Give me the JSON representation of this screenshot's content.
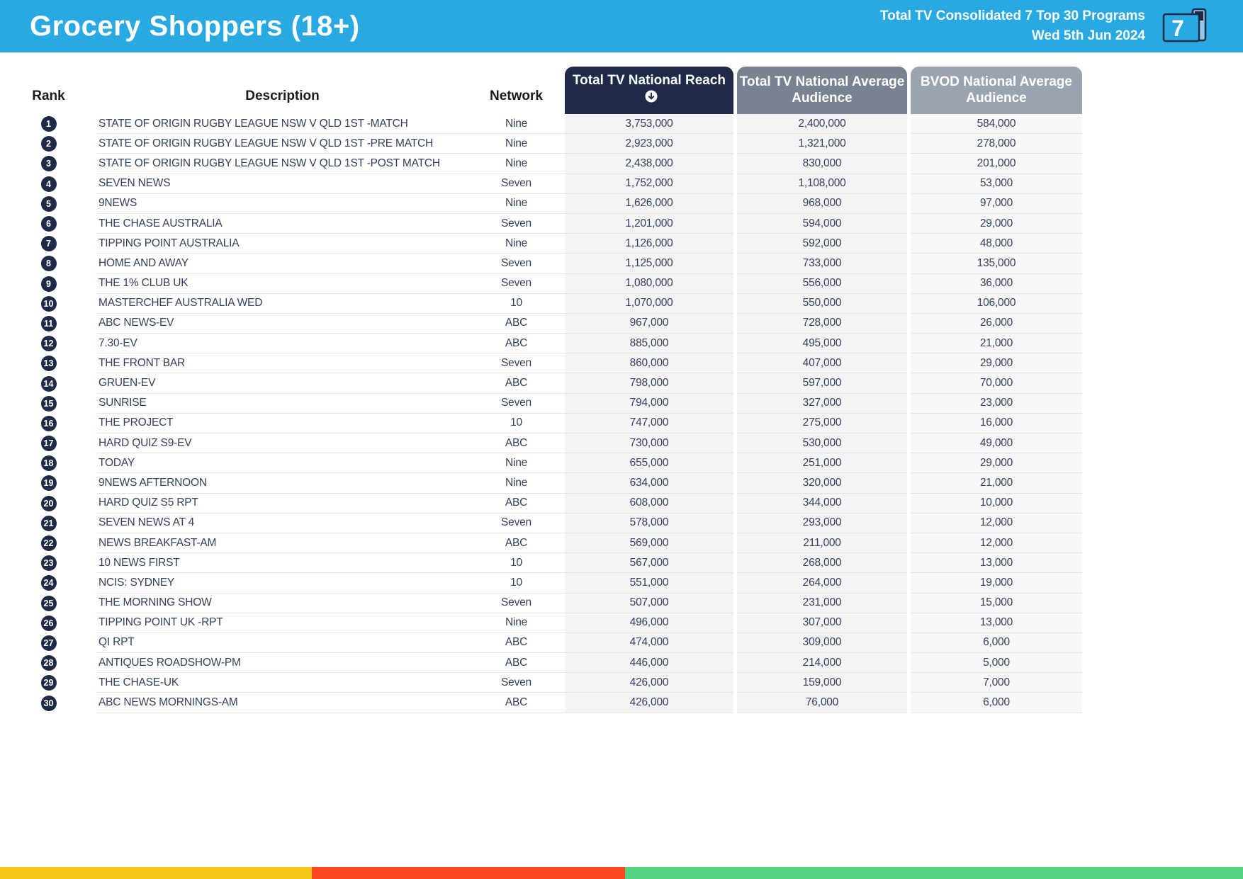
{
  "header": {
    "title": "Grocery Shoppers (18+)",
    "subtitle_line1": "Total TV Consolidated 7 Top 30 Programs",
    "subtitle_line2": "Wed 5th Jun 2024",
    "icon_number": "7"
  },
  "table": {
    "columns": {
      "rank": "Rank",
      "description": "Description",
      "network": "Network",
      "reach": "Total TV National Reach",
      "avg": "Total TV National Average Audience",
      "bvod": "BVOD National Average Audience"
    },
    "sorted_column": "reach",
    "rows": [
      {
        "rank": "1",
        "description": "STATE OF ORIGIN RUGBY LEAGUE NSW V QLD 1ST -MATCH",
        "network": "Nine",
        "reach": "3,753,000",
        "avg": "2,400,000",
        "bvod": "584,000"
      },
      {
        "rank": "2",
        "description": "STATE OF ORIGIN RUGBY LEAGUE NSW V QLD 1ST -PRE MATCH",
        "network": "Nine",
        "reach": "2,923,000",
        "avg": "1,321,000",
        "bvod": "278,000"
      },
      {
        "rank": "3",
        "description": "STATE OF ORIGIN RUGBY LEAGUE NSW V QLD 1ST -POST MATCH",
        "network": "Nine",
        "reach": "2,438,000",
        "avg": "830,000",
        "bvod": "201,000"
      },
      {
        "rank": "4",
        "description": "SEVEN NEWS",
        "network": "Seven",
        "reach": "1,752,000",
        "avg": "1,108,000",
        "bvod": "53,000"
      },
      {
        "rank": "5",
        "description": "9NEWS",
        "network": "Nine",
        "reach": "1,626,000",
        "avg": "968,000",
        "bvod": "97,000"
      },
      {
        "rank": "6",
        "description": "THE CHASE AUSTRALIA",
        "network": "Seven",
        "reach": "1,201,000",
        "avg": "594,000",
        "bvod": "29,000"
      },
      {
        "rank": "7",
        "description": "TIPPING POINT AUSTRALIA",
        "network": "Nine",
        "reach": "1,126,000",
        "avg": "592,000",
        "bvod": "48,000"
      },
      {
        "rank": "8",
        "description": "HOME AND AWAY",
        "network": "Seven",
        "reach": "1,125,000",
        "avg": "733,000",
        "bvod": "135,000"
      },
      {
        "rank": "9",
        "description": "THE 1% CLUB UK",
        "network": "Seven",
        "reach": "1,080,000",
        "avg": "556,000",
        "bvod": "36,000"
      },
      {
        "rank": "10",
        "description": "MASTERCHEF AUSTRALIA WED",
        "network": "10",
        "reach": "1,070,000",
        "avg": "550,000",
        "bvod": "106,000"
      },
      {
        "rank": "11",
        "description": "ABC NEWS-EV",
        "network": "ABC",
        "reach": "967,000",
        "avg": "728,000",
        "bvod": "26,000"
      },
      {
        "rank": "12",
        "description": "7.30-EV",
        "network": "ABC",
        "reach": "885,000",
        "avg": "495,000",
        "bvod": "21,000"
      },
      {
        "rank": "13",
        "description": "THE FRONT BAR",
        "network": "Seven",
        "reach": "860,000",
        "avg": "407,000",
        "bvod": "29,000"
      },
      {
        "rank": "14",
        "description": "GRUEN-EV",
        "network": "ABC",
        "reach": "798,000",
        "avg": "597,000",
        "bvod": "70,000"
      },
      {
        "rank": "15",
        "description": "SUNRISE",
        "network": "Seven",
        "reach": "794,000",
        "avg": "327,000",
        "bvod": "23,000"
      },
      {
        "rank": "16",
        "description": "THE PROJECT",
        "network": "10",
        "reach": "747,000",
        "avg": "275,000",
        "bvod": "16,000"
      },
      {
        "rank": "17",
        "description": "HARD QUIZ S9-EV",
        "network": "ABC",
        "reach": "730,000",
        "avg": "530,000",
        "bvod": "49,000"
      },
      {
        "rank": "18",
        "description": "TODAY",
        "network": "Nine",
        "reach": "655,000",
        "avg": "251,000",
        "bvod": "29,000"
      },
      {
        "rank": "19",
        "description": "9NEWS AFTERNOON",
        "network": "Nine",
        "reach": "634,000",
        "avg": "320,000",
        "bvod": "21,000"
      },
      {
        "rank": "20",
        "description": "HARD QUIZ S5 RPT",
        "network": "ABC",
        "reach": "608,000",
        "avg": "344,000",
        "bvod": "10,000"
      },
      {
        "rank": "21",
        "description": "SEVEN NEWS AT 4",
        "network": "Seven",
        "reach": "578,000",
        "avg": "293,000",
        "bvod": "12,000"
      },
      {
        "rank": "22",
        "description": "NEWS BREAKFAST-AM",
        "network": "ABC",
        "reach": "569,000",
        "avg": "211,000",
        "bvod": "12,000"
      },
      {
        "rank": "23",
        "description": "10 NEWS FIRST",
        "network": "10",
        "reach": "567,000",
        "avg": "268,000",
        "bvod": "13,000"
      },
      {
        "rank": "24",
        "description": "NCIS: SYDNEY",
        "network": "10",
        "reach": "551,000",
        "avg": "264,000",
        "bvod": "19,000"
      },
      {
        "rank": "25",
        "description": "THE MORNING SHOW",
        "network": "Seven",
        "reach": "507,000",
        "avg": "231,000",
        "bvod": "15,000"
      },
      {
        "rank": "26",
        "description": "TIPPING POINT UK -RPT",
        "network": "Nine",
        "reach": "496,000",
        "avg": "307,000",
        "bvod": "13,000"
      },
      {
        "rank": "27",
        "description": "QI RPT",
        "network": "ABC",
        "reach": "474,000",
        "avg": "309,000",
        "bvod": "6,000"
      },
      {
        "rank": "28",
        "description": "ANTIQUES ROADSHOW-PM",
        "network": "ABC",
        "reach": "446,000",
        "avg": "214,000",
        "bvod": "5,000"
      },
      {
        "rank": "29",
        "description": "THE CHASE-UK",
        "network": "Seven",
        "reach": "426,000",
        "avg": "159,000",
        "bvod": "7,000"
      },
      {
        "rank": "30",
        "description": "ABC NEWS MORNINGS-AM",
        "network": "ABC",
        "reach": "426,000",
        "avg": "76,000",
        "bvod": "6,000"
      }
    ]
  },
  "colors": {
    "accent": "#29A9E1",
    "navy": "#1F2A46",
    "gray_mid": "#7A8191",
    "gray_light": "#9CA3B0",
    "col_bg": "#F4F4F7",
    "col_bg_light": "#F8F8FA",
    "row_text": "#33415C",
    "divider": "#E2E3E7"
  },
  "footer_bar": {
    "segments": [
      {
        "name": "yellow-segment",
        "color": "#F5C517",
        "width_pct": 25.1
      },
      {
        "name": "red-segment",
        "color": "#FB4A23",
        "width_pct": 25.2
      },
      {
        "name": "green-segment",
        "color": "#56D283",
        "width_pct": 49.7
      }
    ]
  }
}
